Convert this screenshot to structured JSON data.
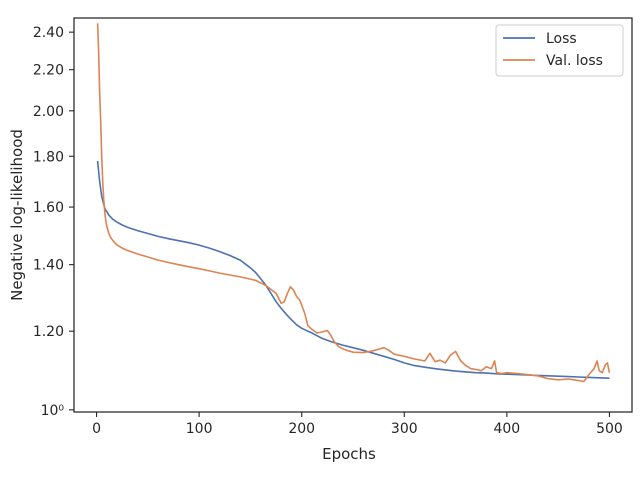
{
  "chart_data": {
    "type": "line",
    "xlabel": "Epochs",
    "ylabel": "Negative log-likelihood",
    "xlim": [
      -22,
      522
    ],
    "ylim": [
      0.995,
      2.48
    ],
    "x_ticks": [
      0,
      100,
      200,
      300,
      400,
      500
    ],
    "x_tick_labels": [
      "0",
      "100",
      "200",
      "300",
      "400",
      "500"
    ],
    "y_ticks": [
      1.0,
      1.2,
      1.4,
      1.6,
      1.8,
      2.0,
      2.2,
      2.4
    ],
    "y_tick_labels": [
      "10⁰",
      "1.20",
      "1.40",
      "1.60",
      "1.80",
      "2.00",
      "2.20",
      "2.40"
    ],
    "y_scale": "log",
    "grid": false,
    "legend_position": "top-right",
    "series": [
      {
        "name": "Loss",
        "color": "#4c72b0",
        "x": [
          1,
          3,
          5,
          8,
          12,
          16,
          20,
          25,
          30,
          40,
          50,
          60,
          70,
          80,
          90,
          100,
          110,
          120,
          130,
          140,
          150,
          155,
          160,
          165,
          170,
          175,
          180,
          185,
          190,
          195,
          200,
          210,
          220,
          230,
          240,
          250,
          260,
          270,
          280,
          290,
          300,
          310,
          320,
          330,
          340,
          350,
          360,
          370,
          380,
          390,
          400,
          410,
          420,
          430,
          440,
          450,
          460,
          470,
          480,
          490,
          500
        ],
        "y": [
          1.78,
          1.7,
          1.64,
          1.595,
          1.57,
          1.555,
          1.545,
          1.535,
          1.527,
          1.515,
          1.505,
          1.495,
          1.487,
          1.48,
          1.473,
          1.465,
          1.455,
          1.443,
          1.43,
          1.415,
          1.39,
          1.375,
          1.355,
          1.335,
          1.31,
          1.285,
          1.265,
          1.248,
          1.232,
          1.218,
          1.208,
          1.195,
          1.18,
          1.17,
          1.162,
          1.155,
          1.148,
          1.14,
          1.132,
          1.124,
          1.115,
          1.108,
          1.104,
          1.1,
          1.097,
          1.094,
          1.092,
          1.09,
          1.089,
          1.087,
          1.086,
          1.085,
          1.084,
          1.083,
          1.082,
          1.081,
          1.08,
          1.079,
          1.078,
          1.077,
          1.076
        ]
      },
      {
        "name": "Val. loss",
        "color": "#dd8452",
        "x": [
          1,
          2,
          3,
          4,
          5,
          6,
          7,
          8,
          9,
          10,
          12,
          14,
          16,
          18,
          20,
          25,
          30,
          40,
          50,
          60,
          70,
          80,
          90,
          100,
          110,
          120,
          130,
          140,
          150,
          155,
          160,
          165,
          170,
          175,
          180,
          183,
          186,
          189,
          192,
          195,
          198,
          200,
          203,
          206,
          210,
          215,
          220,
          225,
          228,
          232,
          236,
          240,
          245,
          250,
          260,
          270,
          280,
          285,
          290,
          300,
          310,
          320,
          325,
          330,
          335,
          340,
          345,
          350,
          355,
          360,
          365,
          370,
          375,
          380,
          385,
          388,
          390,
          395,
          400,
          410,
          420,
          430,
          440,
          450,
          460,
          470,
          475,
          480,
          485,
          488,
          490,
          493,
          496,
          498,
          500
        ],
        "y": [
          2.45,
          2.3,
          2.1,
          1.95,
          1.8,
          1.7,
          1.63,
          1.58,
          1.55,
          1.53,
          1.505,
          1.49,
          1.48,
          1.472,
          1.465,
          1.455,
          1.447,
          1.435,
          1.425,
          1.415,
          1.407,
          1.4,
          1.393,
          1.387,
          1.38,
          1.373,
          1.367,
          1.361,
          1.354,
          1.35,
          1.342,
          1.334,
          1.322,
          1.31,
          1.28,
          1.285,
          1.31,
          1.33,
          1.32,
          1.3,
          1.29,
          1.275,
          1.25,
          1.215,
          1.205,
          1.195,
          1.198,
          1.202,
          1.19,
          1.17,
          1.158,
          1.152,
          1.147,
          1.143,
          1.142,
          1.147,
          1.155,
          1.148,
          1.138,
          1.132,
          1.125,
          1.12,
          1.14,
          1.118,
          1.122,
          1.115,
          1.135,
          1.145,
          1.12,
          1.108,
          1.1,
          1.098,
          1.095,
          1.105,
          1.1,
          1.12,
          1.09,
          1.088,
          1.09,
          1.088,
          1.085,
          1.082,
          1.075,
          1.072,
          1.074,
          1.07,
          1.068,
          1.085,
          1.1,
          1.12,
          1.095,
          1.09,
          1.11,
          1.115,
          1.09
        ]
      }
    ]
  }
}
